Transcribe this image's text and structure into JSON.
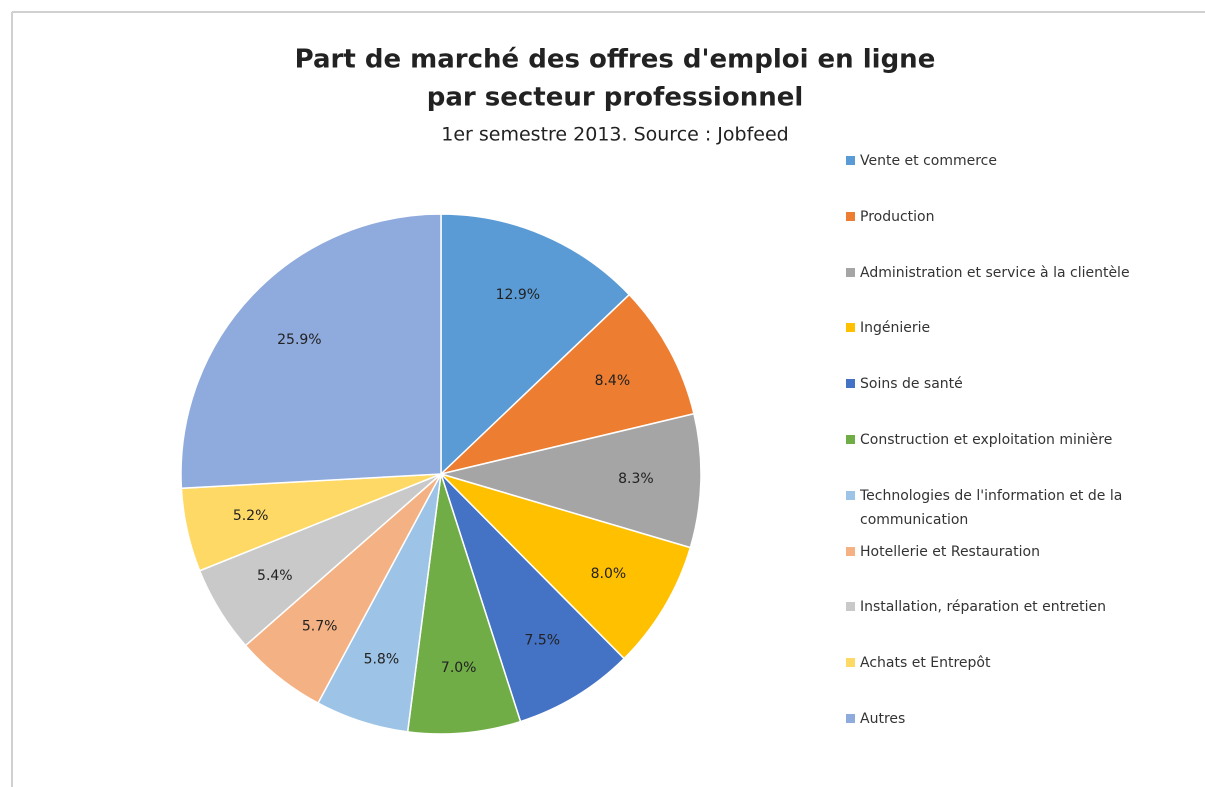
{
  "chart_data": {
    "type": "pie",
    "title": "Part de marché des offres d'emploi en ligne",
    "title_line2": "par secteur professionnel",
    "subtitle": "1er semestre 2013. Source : Jobfeed",
    "categories": [
      "Vente et commerce",
      "Production",
      "Administration et service à la clientèle",
      "Ingénierie",
      "Soins de santé",
      "Construction et exploitation minière",
      "Technologies de l'information et de la communication",
      "Hotellerie et Restauration",
      "Installation, réparation et entretien",
      "Achats et Entrepôt",
      "Autres"
    ],
    "values": [
      12.9,
      8.4,
      8.3,
      8.0,
      7.5,
      7.0,
      5.8,
      5.7,
      5.4,
      5.2,
      25.9
    ],
    "value_labels": [
      "12.9%",
      "8.4%",
      "8.3%",
      "8.0%",
      "7.5%",
      "7.0%",
      "5.8%",
      "5.7%",
      "5.4%",
      "5.2%",
      "25.9%"
    ],
    "colors": [
      "#5b9bd5",
      "#ed7d31",
      "#a5a5a5",
      "#ffc000",
      "#4472c4",
      "#70ad47",
      "#9dc3e6",
      "#f4b183",
      "#c9c9c9",
      "#ffd966",
      "#8faadc"
    ],
    "legend": "right"
  }
}
